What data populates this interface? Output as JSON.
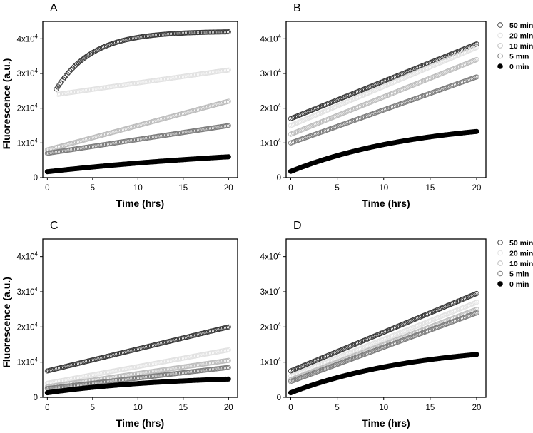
{
  "figure": {
    "x_axis_title": "Time (hrs)",
    "y_axis_title": "Fluorescence (a.u.)"
  },
  "legend": {
    "entries": [
      {
        "label": "50 min",
        "style": "open-dark"
      },
      {
        "label": "20 min",
        "style": "open-faint"
      },
      {
        "label": "10 min",
        "style": "open-light"
      },
      {
        "label": "5 min",
        "style": "open-mid"
      },
      {
        "label": "0 min",
        "style": "filled"
      }
    ]
  },
  "styles": {
    "open-dark": {
      "stroke": "#3a3a3a",
      "fill": "none"
    },
    "open-faint": {
      "stroke": "#e2e2e2",
      "fill": "none"
    },
    "open-light": {
      "stroke": "#bdbdbd",
      "fill": "none"
    },
    "open-mid": {
      "stroke": "#7d7d7d",
      "fill": "none"
    },
    "filled": {
      "stroke": "#000000",
      "fill": "#000000"
    }
  },
  "chart_data": [
    {
      "type": "scatter",
      "panel_label": "A",
      "xlabel": "Time (hrs)",
      "ylabel": "Fluorescence (a.u.)",
      "xlim": [
        -0.5,
        21
      ],
      "ylim": [
        0,
        45000
      ],
      "x_ticks": [
        0,
        5,
        10,
        15,
        20
      ],
      "y_ticks": [
        {
          "value": 0,
          "base": "0",
          "exp": ""
        },
        {
          "value": 10000,
          "base": "1x10",
          "exp": "4"
        },
        {
          "value": 20000,
          "base": "2x10",
          "exp": "4"
        },
        {
          "value": 30000,
          "base": "3x10",
          "exp": "4"
        },
        {
          "value": 40000,
          "base": "4x10",
          "exp": "4"
        }
      ],
      "legend": false,
      "series": [
        {
          "name": "50 min",
          "style": "open-dark",
          "x0": 1.0,
          "x_end": 20,
          "y0": 25500,
          "y_end": 42000,
          "tau": 4.0,
          "lin": 0
        },
        {
          "name": "20 min",
          "style": "open-faint",
          "x0": 1.2,
          "x_end": 20,
          "y0": 24000,
          "y_end": 31000,
          "tau": 2.5,
          "lin": 70
        },
        {
          "name": "10 min",
          "style": "open-light",
          "x0": 0,
          "x_end": 20,
          "y0": 8000,
          "y_end": 22000,
          "tau": 0.8,
          "lin": 200
        },
        {
          "name": "5 min",
          "style": "open-mid",
          "x0": 0,
          "x_end": 20,
          "y0": 7000,
          "y_end": 15000,
          "tau": 0.6,
          "lin": 100
        },
        {
          "name": "0 min",
          "style": "filled",
          "x0": 0,
          "x_end": 20,
          "y0": 1700,
          "y_end": 6000,
          "tau": 30,
          "lin": 0
        }
      ]
    },
    {
      "type": "scatter",
      "panel_label": "B",
      "xlabel": "Time (hrs)",
      "ylabel": "",
      "xlim": [
        -0.5,
        21
      ],
      "ylim": [
        0,
        45000
      ],
      "x_ticks": [
        0,
        5,
        10,
        15,
        20
      ],
      "y_ticks": [
        {
          "value": 0,
          "base": "0",
          "exp": ""
        },
        {
          "value": 10000,
          "base": "1x10",
          "exp": "4"
        },
        {
          "value": 20000,
          "base": "2x10",
          "exp": "4"
        },
        {
          "value": 30000,
          "base": "3x10",
          "exp": "4"
        },
        {
          "value": 40000,
          "base": "4x10",
          "exp": "4"
        }
      ],
      "legend": true,
      "series": [
        {
          "name": "50 min",
          "style": "open-dark",
          "x0": 0,
          "x_end": 20,
          "y0": 17000,
          "y_end": 38500,
          "tau": 3.0,
          "lin": 300
        },
        {
          "name": "20 min",
          "style": "open-faint",
          "x0": 0,
          "x_end": 20,
          "y0": 15000,
          "y_end": 37500,
          "tau": 3.5,
          "lin": 300
        },
        {
          "name": "10 min",
          "style": "open-light",
          "x0": 0,
          "x_end": 20,
          "y0": 12500,
          "y_end": 34000,
          "tau": 4.0,
          "lin": 350
        },
        {
          "name": "5 min",
          "style": "open-mid",
          "x0": 0,
          "x_end": 20,
          "y0": 10000,
          "y_end": 29000,
          "tau": 5.0,
          "lin": 300
        },
        {
          "name": "0 min",
          "style": "filled",
          "x0": 0,
          "x_end": 20,
          "y0": 1800,
          "y_end": 13300,
          "tau": 14.0,
          "lin": 0
        }
      ]
    },
    {
      "type": "scatter",
      "panel_label": "C",
      "xlabel": "Time (hrs)",
      "ylabel": "Fluorescence (a.u.)",
      "xlim": [
        -0.5,
        21
      ],
      "ylim": [
        0,
        45000
      ],
      "x_ticks": [
        0,
        5,
        10,
        15,
        20
      ],
      "y_ticks": [
        {
          "value": 0,
          "base": "0",
          "exp": ""
        },
        {
          "value": 10000,
          "base": "1x10",
          "exp": "4"
        },
        {
          "value": 20000,
          "base": "2x10",
          "exp": "4"
        },
        {
          "value": 30000,
          "base": "3x10",
          "exp": "4"
        },
        {
          "value": 40000,
          "base": "4x10",
          "exp": "4"
        }
      ],
      "legend": false,
      "series": [
        {
          "name": "50 min",
          "style": "open-dark",
          "x0": 0,
          "x_end": 20,
          "y0": 7500,
          "y_end": 20000,
          "tau": 2.0,
          "lin": 200
        },
        {
          "name": "20 min",
          "style": "open-faint",
          "x0": 0,
          "x_end": 20,
          "y0": 4000,
          "y_end": 13500,
          "tau": 3.0,
          "lin": 150
        },
        {
          "name": "10 min",
          "style": "open-light",
          "x0": 0,
          "x_end": 20,
          "y0": 3000,
          "y_end": 10500,
          "tau": 3.5,
          "lin": 120
        },
        {
          "name": "5 min",
          "style": "open-mid",
          "x0": 0,
          "x_end": 20,
          "y0": 2500,
          "y_end": 8500,
          "tau": 4.0,
          "lin": 100
        },
        {
          "name": "0 min",
          "style": "filled",
          "x0": 0,
          "x_end": 20,
          "y0": 1300,
          "y_end": 5200,
          "tau": 14.0,
          "lin": 0
        }
      ]
    },
    {
      "type": "scatter",
      "panel_label": "D",
      "xlabel": "Time (hrs)",
      "ylabel": "",
      "xlim": [
        -0.5,
        21
      ],
      "ylim": [
        0,
        45000
      ],
      "x_ticks": [
        0,
        5,
        10,
        15,
        20
      ],
      "y_ticks": [
        {
          "value": 0,
          "base": "0",
          "exp": ""
        },
        {
          "value": 10000,
          "base": "1x10",
          "exp": "4"
        },
        {
          "value": 20000,
          "base": "2x10",
          "exp": "4"
        },
        {
          "value": 30000,
          "base": "3x10",
          "exp": "4"
        },
        {
          "value": 40000,
          "base": "4x10",
          "exp": "4"
        }
      ],
      "legend": true,
      "series": [
        {
          "name": "50 min",
          "style": "open-dark",
          "x0": 0,
          "x_end": 20,
          "y0": 7500,
          "y_end": 29500,
          "tau": 5.0,
          "lin": 300
        },
        {
          "name": "20 min",
          "style": "open-faint",
          "x0": 0,
          "x_end": 20,
          "y0": 6000,
          "y_end": 27000,
          "tau": 6.0,
          "lin": 300
        },
        {
          "name": "10 min",
          "style": "open-light",
          "x0": 0,
          "x_end": 20,
          "y0": 5000,
          "y_end": 25000,
          "tau": 7.0,
          "lin": 300
        },
        {
          "name": "5 min",
          "style": "open-mid",
          "x0": 0,
          "x_end": 20,
          "y0": 4500,
          "y_end": 24000,
          "tau": 7.0,
          "lin": 300
        },
        {
          "name": "0 min",
          "style": "filled",
          "x0": 0,
          "x_end": 20,
          "y0": 1300,
          "y_end": 12200,
          "tau": 14.0,
          "lin": 0
        }
      ]
    }
  ]
}
